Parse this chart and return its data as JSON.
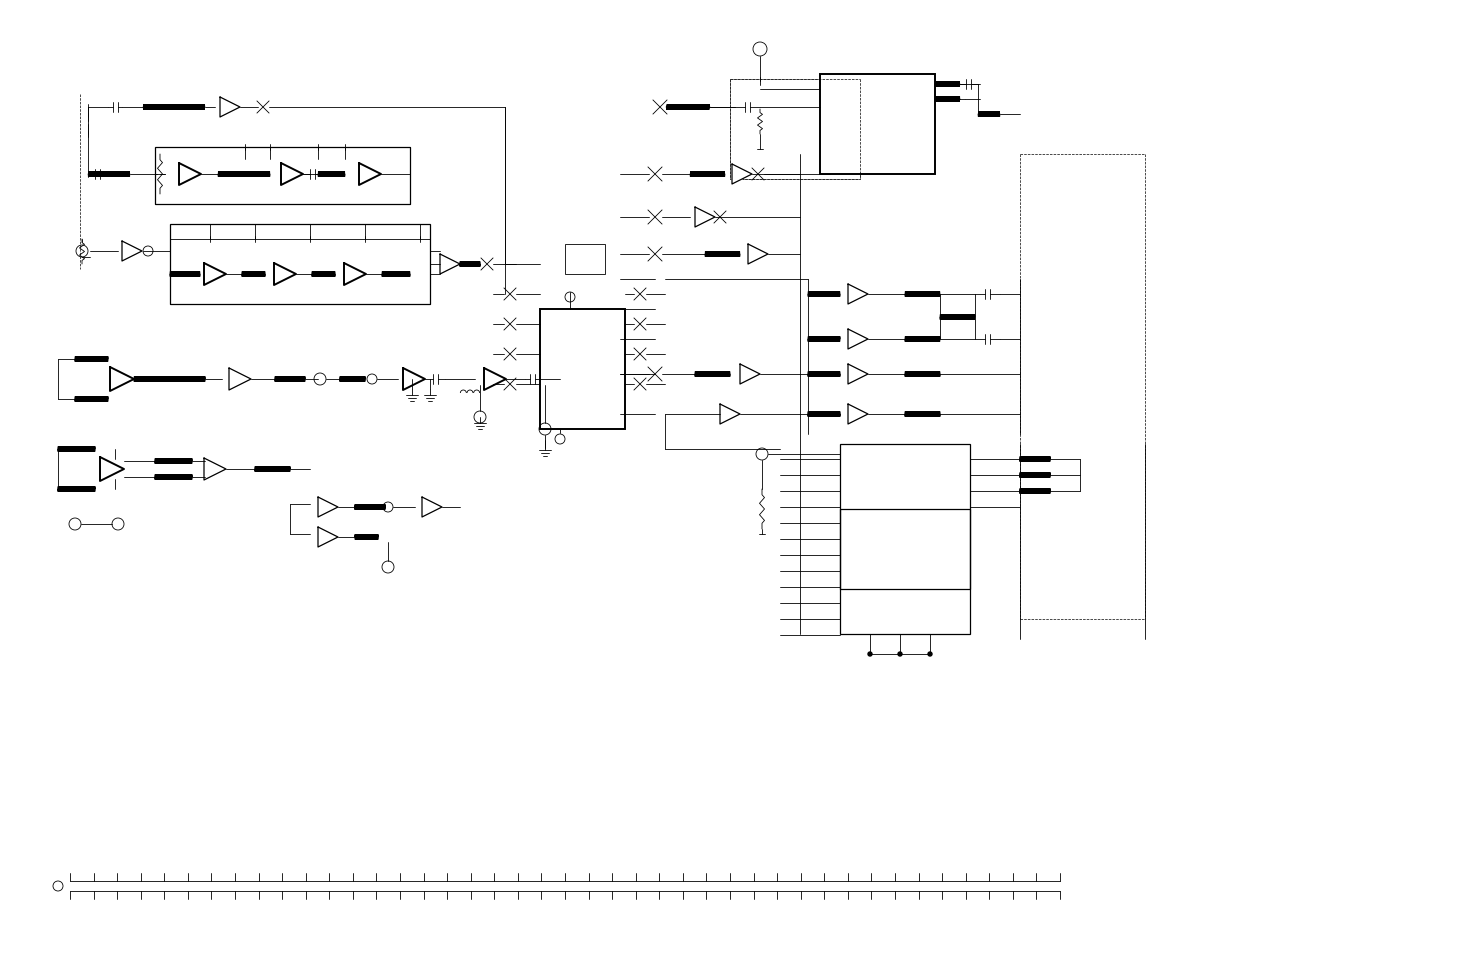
{
  "bg_color": "#ffffff",
  "line_color": "#000000",
  "fig_width": 14.75,
  "fig_height": 9.54
}
